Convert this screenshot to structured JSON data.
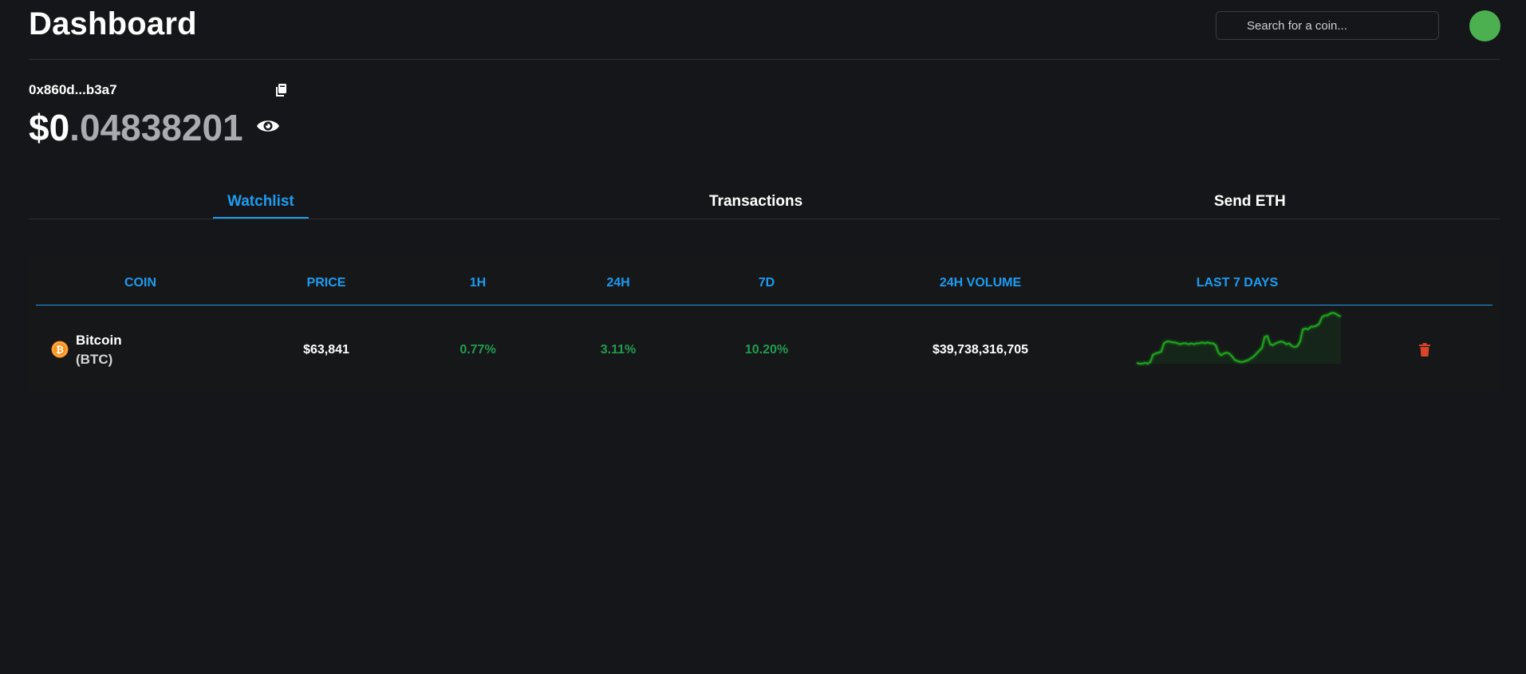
{
  "header": {
    "title": "Dashboard",
    "search": {
      "placeholder": "Search for a coin...",
      "value": ""
    },
    "avatar_color": "#4caf50"
  },
  "wallet": {
    "address": "0x860d...b3a7",
    "balance_int": "$0",
    "balance_dec": ".04838201"
  },
  "tabs": [
    {
      "label": "Watchlist",
      "active": true
    },
    {
      "label": "Transactions",
      "active": false
    },
    {
      "label": "Send ETH",
      "active": false
    }
  ],
  "table": {
    "columns": [
      "COIN",
      "PRICE",
      "1H",
      "24H",
      "7D",
      "24H VOLUME",
      "LAST 7 DAYS"
    ],
    "rows": [
      {
        "name": "Bitcoin",
        "symbol": "(BTC)",
        "price": "$63,841",
        "change_1h": "0.77%",
        "change_24h": "3.11%",
        "change_7d": "10.20%",
        "volume_24h": "$39,738,316,705",
        "sparkline": [
          10,
          9,
          9,
          10,
          9,
          11,
          19,
          20,
          21,
          22,
          31,
          33,
          33,
          32,
          32,
          31,
          30,
          31,
          31,
          30,
          31,
          30,
          31,
          31,
          32,
          31,
          32,
          31,
          31,
          29,
          21,
          18,
          20,
          21,
          20,
          17,
          13,
          12,
          11,
          11,
          12,
          13,
          15,
          17,
          20,
          23,
          26,
          38,
          39,
          30,
          29,
          31,
          32,
          33,
          32,
          30,
          31,
          28,
          27,
          28,
          33,
          46,
          47,
          46,
          49,
          49,
          50,
          52,
          59,
          61,
          61,
          63,
          64,
          63,
          61,
          60
        ]
      }
    ]
  },
  "colors": {
    "accent": "#1c9cf0",
    "positive": "#1f9d4f",
    "sparkline": "#1fa51f",
    "delete": "#d9442b",
    "bitcoin": "#f7931a"
  },
  "icons": {
    "copy": "copy-icon",
    "eye": "eye-icon",
    "search": "search-icon",
    "trash": "trash-icon",
    "coin": "bitcoin-icon"
  }
}
